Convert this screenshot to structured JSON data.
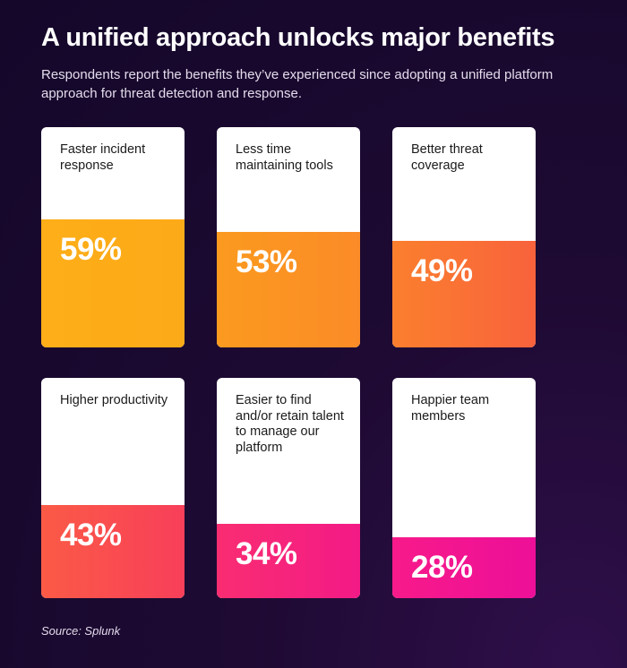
{
  "header": {
    "title": "A unified approach unlocks major benefits",
    "subtitle": "Respondents report the benefits they’ve experienced since adopting a unified platform approach for threat detection and response."
  },
  "footer": {
    "source": "Source: Splunk"
  },
  "chart_data": {
    "type": "bar",
    "categories": [
      "Faster incident response",
      "Less time maintaining tools",
      "Better threat coverage",
      "Higher productivity",
      "Easier to find and/or retain talent to manage our platform",
      "Happier team members"
    ],
    "values": [
      59,
      53,
      49,
      43,
      34,
      28
    ],
    "value_labels": [
      "59%",
      "53%",
      "49%",
      "43%",
      "34%",
      "28%"
    ],
    "unit": "%",
    "ylim": [
      0,
      100
    ],
    "layout": "2 rows x 3 columns of cards, fill height proportional to value",
    "fill_colors": [
      [
        "#fdae18",
        "#fdaa18"
      ],
      [
        "#fb9a1f",
        "#fb8b27"
      ],
      [
        "#fb7f2e",
        "#f8623c"
      ],
      [
        "#fb5a46",
        "#f83f5a"
      ],
      [
        "#f92d72",
        "#f31a86"
      ],
      [
        "#f71a8a",
        "#ed0f98"
      ]
    ]
  }
}
